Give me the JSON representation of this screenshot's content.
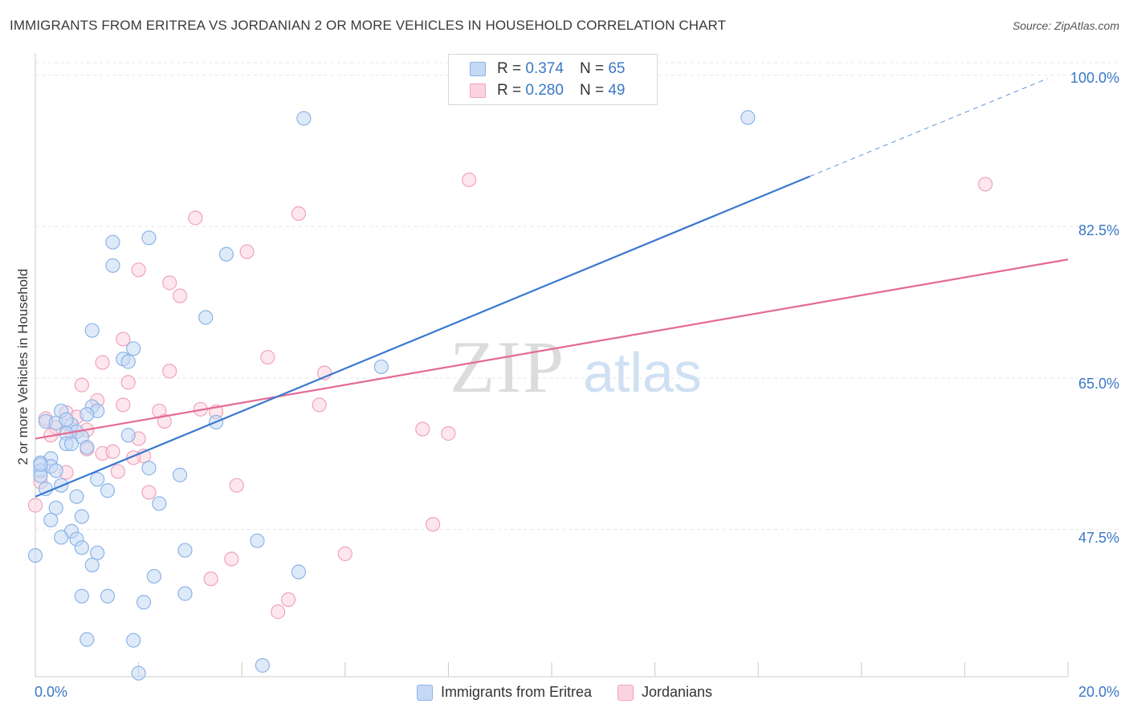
{
  "title": "IMMIGRANTS FROM ERITREA VS JORDANIAN 2 OR MORE VEHICLES IN HOUSEHOLD CORRELATION CHART",
  "source": "Source: ZipAtlas.com",
  "watermark": {
    "zip": "ZIP",
    "atlas": "atlas"
  },
  "stats": [
    {
      "r_label": "R =",
      "r_value": "0.374",
      "n_label": "N =",
      "n_value": "65",
      "color": "#8bb4e8",
      "fill": "#c5d9f4"
    },
    {
      "r_label": "R =",
      "r_value": "0.280",
      "n_label": "N =",
      "n_value": "49",
      "color": "#f0a3bc",
      "fill": "#fbd3de"
    }
  ],
  "legend": [
    {
      "label": "Immigrants from Eritrea",
      "color": "#8bb4e8",
      "fill": "#c5d9f4"
    },
    {
      "label": "Jordanians",
      "color": "#f0a3bc",
      "fill": "#fbd3de"
    }
  ],
  "colors": {
    "blue_line": "#3a78d1",
    "pink_line": "#e46a93",
    "tick_text": "#3b78c4",
    "grid": "#e6e6e6"
  },
  "chart_data": {
    "type": "scatter",
    "title": "IMMIGRANTS FROM ERITREA VS JORDANIAN 2 OR MORE VEHICLES IN HOUSEHOLD CORRELATION CHART",
    "xlabel": "",
    "ylabel": "2 or more Vehicles in Household",
    "xlim": [
      0,
      20
    ],
    "ylim": [
      30.5,
      102
    ],
    "x_tick_labels": [
      "0.0%",
      "20.0%"
    ],
    "y_ticks": [
      47.5,
      65.0,
      82.5,
      100.0
    ],
    "y_tick_labels": [
      "47.5%",
      "65.0%",
      "82.5%",
      "100.0%"
    ],
    "series": [
      {
        "name": "Immigrants from Eritrea",
        "r": 0.374,
        "n": 65,
        "trend": {
          "x0": 0,
          "y0": 51.3,
          "x1": 15.0,
          "y1": 88.3,
          "dashed_to_x": 19.6,
          "dashed_to_y": 99.6
        },
        "points": [
          [
            5.2,
            95.0
          ],
          [
            13.8,
            95.1
          ],
          [
            2.2,
            81.2
          ],
          [
            1.5,
            80.7
          ],
          [
            3.7,
            79.3
          ],
          [
            1.5,
            78.0
          ],
          [
            3.3,
            72.0
          ],
          [
            1.1,
            70.5
          ],
          [
            1.9,
            68.4
          ],
          [
            1.7,
            67.2
          ],
          [
            1.8,
            66.9
          ],
          [
            6.7,
            66.3
          ],
          [
            0.5,
            61.2
          ],
          [
            1.1,
            61.7
          ],
          [
            1.2,
            61.2
          ],
          [
            1.0,
            60.8
          ],
          [
            0.2,
            60.0
          ],
          [
            0.4,
            59.8
          ],
          [
            0.7,
            59.6
          ],
          [
            0.8,
            58.8
          ],
          [
            0.6,
            58.6
          ],
          [
            0.9,
            58.2
          ],
          [
            1.8,
            58.4
          ],
          [
            3.5,
            59.9
          ],
          [
            0.6,
            57.4
          ],
          [
            0.7,
            57.4
          ],
          [
            0.3,
            55.7
          ],
          [
            0.1,
            55.2
          ],
          [
            0.3,
            54.8
          ],
          [
            0.4,
            54.3
          ],
          [
            0.1,
            54.3
          ],
          [
            0.1,
            53.7
          ],
          [
            2.2,
            54.6
          ],
          [
            1.2,
            53.3
          ],
          [
            2.8,
            53.8
          ],
          [
            0.5,
            52.6
          ],
          [
            0.2,
            52.2
          ],
          [
            1.4,
            52.0
          ],
          [
            0.8,
            51.3
          ],
          [
            2.4,
            50.5
          ],
          [
            0.4,
            50.0
          ],
          [
            0.3,
            48.6
          ],
          [
            0.9,
            49.0
          ],
          [
            0.7,
            47.3
          ],
          [
            0.5,
            46.6
          ],
          [
            0.8,
            46.4
          ],
          [
            4.3,
            46.2
          ],
          [
            0.9,
            45.4
          ],
          [
            1.2,
            44.8
          ],
          [
            2.9,
            45.1
          ],
          [
            0.0,
            44.5
          ],
          [
            1.1,
            43.4
          ],
          [
            5.1,
            42.6
          ],
          [
            2.3,
            42.1
          ],
          [
            0.9,
            39.8
          ],
          [
            1.4,
            39.8
          ],
          [
            2.9,
            40.1
          ],
          [
            2.1,
            39.1
          ],
          [
            1.0,
            34.8
          ],
          [
            1.9,
            34.7
          ],
          [
            4.4,
            31.8
          ],
          [
            2.0,
            30.9
          ],
          [
            0.1,
            55.0
          ],
          [
            0.6,
            60.2
          ],
          [
            1.0,
            57.0
          ]
        ]
      },
      {
        "name": "Jordanians",
        "r": 0.28,
        "n": 49,
        "trend": {
          "x0": 0,
          "y0": 58.0,
          "x1": 20.0,
          "y1": 78.7
        },
        "points": [
          [
            8.4,
            87.9
          ],
          [
            18.4,
            87.4
          ],
          [
            5.1,
            84.0
          ],
          [
            3.1,
            83.5
          ],
          [
            4.1,
            79.6
          ],
          [
            2.0,
            77.5
          ],
          [
            2.6,
            76.0
          ],
          [
            2.8,
            74.5
          ],
          [
            1.7,
            69.5
          ],
          [
            4.5,
            67.4
          ],
          [
            1.3,
            66.8
          ],
          [
            2.6,
            65.8
          ],
          [
            5.6,
            65.6
          ],
          [
            0.9,
            64.2
          ],
          [
            1.8,
            64.5
          ],
          [
            1.2,
            62.4
          ],
          [
            1.7,
            61.9
          ],
          [
            5.5,
            61.9
          ],
          [
            3.2,
            61.4
          ],
          [
            3.5,
            61.1
          ],
          [
            2.4,
            61.2
          ],
          [
            0.2,
            60.3
          ],
          [
            2.5,
            60.0
          ],
          [
            0.4,
            59.3
          ],
          [
            7.5,
            59.1
          ],
          [
            8.0,
            58.6
          ],
          [
            0.7,
            58.8
          ],
          [
            1.0,
            56.8
          ],
          [
            0.3,
            58.4
          ],
          [
            1.3,
            56.3
          ],
          [
            1.5,
            56.5
          ],
          [
            2.1,
            56.0
          ],
          [
            0.6,
            54.1
          ],
          [
            1.6,
            54.2
          ],
          [
            1.9,
            55.8
          ],
          [
            3.9,
            52.6
          ],
          [
            0.1,
            53.0
          ],
          [
            2.2,
            51.8
          ],
          [
            0.0,
            50.3
          ],
          [
            7.7,
            48.1
          ],
          [
            6.0,
            44.7
          ],
          [
            3.8,
            44.1
          ],
          [
            3.4,
            41.8
          ],
          [
            4.9,
            39.4
          ],
          [
            4.7,
            38.0
          ],
          [
            0.6,
            61.0
          ],
          [
            1.0,
            59.0
          ],
          [
            2.0,
            58.0
          ],
          [
            0.8,
            60.5
          ]
        ]
      }
    ]
  }
}
